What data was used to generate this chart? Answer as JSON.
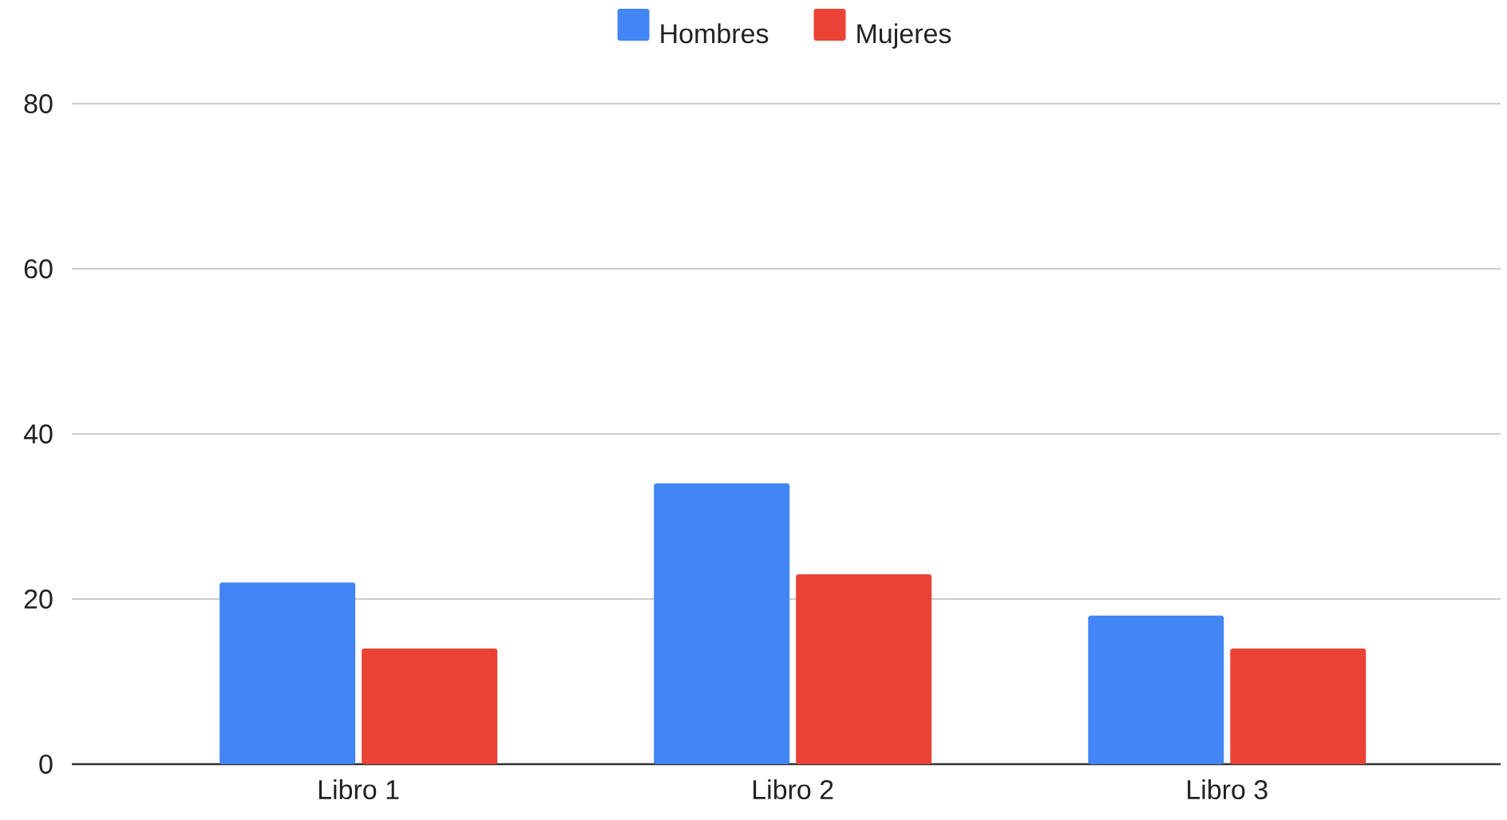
{
  "chart_data": {
    "type": "bar",
    "categories": [
      "Libro 1",
      "Libro 2",
      "Libro 3"
    ],
    "series": [
      {
        "name": "Hombres",
        "color": "#4285f4",
        "values": [
          22,
          34,
          18
        ]
      },
      {
        "name": "Mujeres",
        "color": "#ea4335",
        "values": [
          14,
          23,
          14
        ]
      }
    ],
    "ylim": [
      0,
      80
    ],
    "yticks": [
      0,
      20,
      40,
      60,
      80
    ],
    "grid": "y",
    "legend": "top"
  }
}
